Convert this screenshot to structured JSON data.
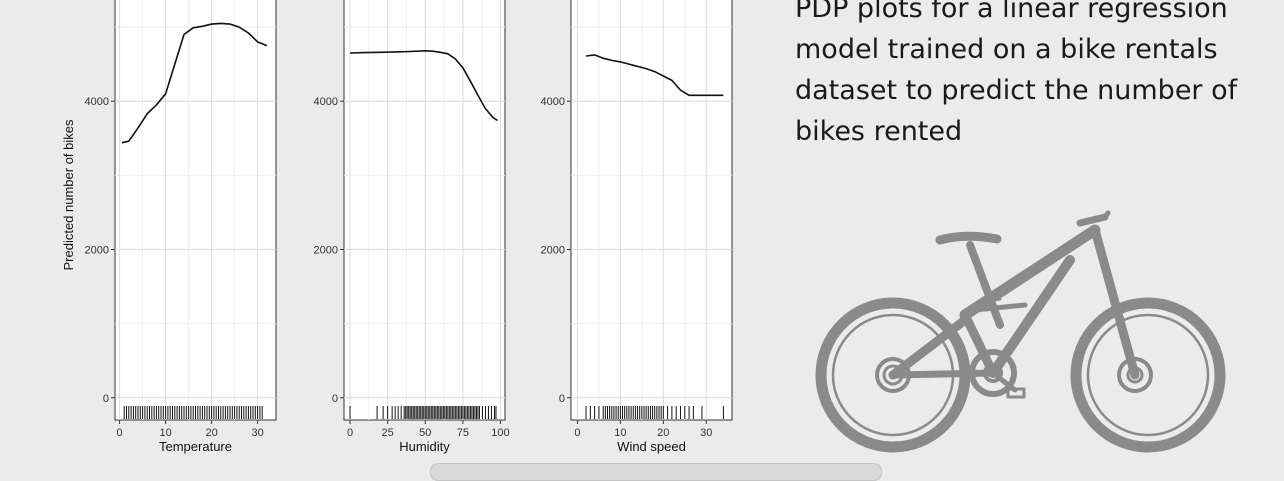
{
  "description": "PDP plots for a linear regression model trained on a bike rentals dataset to predict the number of bikes rented",
  "chart_data": [
    {
      "type": "line",
      "xlabel": "Temperature",
      "ylabel": "Predicted number of bikes",
      "xlim": [
        -1,
        34
      ],
      "ylim": [
        -300,
        5500
      ],
      "xticks": [
        0,
        10,
        20,
        30
      ],
      "yticks": [
        0,
        2000,
        4000
      ],
      "grid": true,
      "line_color": "#111111",
      "x": [
        0.5,
        2,
        4,
        6,
        8,
        10,
        12,
        14,
        16,
        18,
        20,
        22,
        24,
        26,
        28,
        30,
        32
      ],
      "y": [
        3440,
        3460,
        3640,
        3830,
        3950,
        4100,
        4500,
        4900,
        4990,
        5010,
        5040,
        5050,
        5040,
        5000,
        4920,
        4800,
        4750
      ],
      "rug": [
        1,
        1.5,
        2,
        2.5,
        3,
        3.5,
        4,
        4.5,
        5,
        5.5,
        6,
        6.5,
        7,
        7.5,
        8,
        8.5,
        9,
        9.5,
        10,
        10.5,
        11,
        11.5,
        12,
        12.5,
        13,
        13.5,
        14,
        14.5,
        15,
        15.5,
        16,
        16.5,
        17,
        17.5,
        18,
        18.5,
        19,
        19.5,
        20,
        20.5,
        21,
        21.5,
        22,
        22.5,
        23,
        23.5,
        24,
        24.5,
        25,
        25.5,
        26,
        26.5,
        27,
        27.5,
        28,
        28.5,
        29,
        29.5,
        30,
        30.5,
        31
      ]
    },
    {
      "type": "line",
      "xlabel": "Humidity",
      "xlim": [
        -4,
        103
      ],
      "ylim": [
        -300,
        5500
      ],
      "xticks": [
        0,
        25,
        50,
        75,
        100
      ],
      "yticks": [
        0,
        2000,
        4000
      ],
      "grid": true,
      "line_color": "#111111",
      "x": [
        0,
        10,
        20,
        30,
        40,
        50,
        55,
        60,
        65,
        70,
        75,
        80,
        85,
        90,
        95,
        98
      ],
      "y": [
        4650,
        4655,
        4660,
        4665,
        4670,
        4680,
        4675,
        4660,
        4640,
        4570,
        4450,
        4270,
        4080,
        3900,
        3780,
        3740
      ],
      "rug": [
        0,
        18,
        22,
        25,
        28,
        30,
        32,
        34,
        36,
        37,
        38,
        39,
        40,
        41,
        42,
        43,
        44,
        45,
        46,
        47,
        48,
        49,
        50,
        51,
        52,
        53,
        54,
        55,
        56,
        57,
        58,
        59,
        60,
        61,
        62,
        63,
        64,
        65,
        66,
        67,
        68,
        69,
        70,
        71,
        72,
        73,
        74,
        75,
        76,
        77,
        78,
        79,
        80,
        81,
        82,
        83,
        84,
        85,
        86,
        88,
        90,
        92,
        94,
        96,
        97
      ]
    },
    {
      "type": "line",
      "xlabel": "Wind speed",
      "xlim": [
        -1.5,
        36
      ],
      "ylim": [
        -300,
        5500
      ],
      "xticks": [
        0,
        10,
        20,
        30
      ],
      "yticks": [
        0,
        2000,
        4000
      ],
      "grid": true,
      "line_color": "#111111",
      "x": [
        2,
        4,
        6,
        8,
        10,
        12,
        14,
        16,
        18,
        20,
        22,
        24,
        26,
        28,
        30,
        32,
        34
      ],
      "y": [
        4610,
        4625,
        4580,
        4550,
        4530,
        4500,
        4470,
        4440,
        4400,
        4340,
        4280,
        4150,
        4080,
        4080,
        4080,
        4080,
        4080
      ],
      "rug": [
        2,
        3,
        4,
        5,
        6,
        6.5,
        7,
        7.5,
        8,
        8.5,
        9,
        9.5,
        10,
        10.5,
        11,
        11.5,
        12,
        12.5,
        13,
        13.5,
        14,
        14.5,
        15,
        15.5,
        16,
        16.5,
        17,
        17.5,
        18,
        18.5,
        19,
        19.5,
        20,
        21,
        22,
        23,
        24,
        25,
        26,
        27,
        29,
        34
      ]
    }
  ]
}
